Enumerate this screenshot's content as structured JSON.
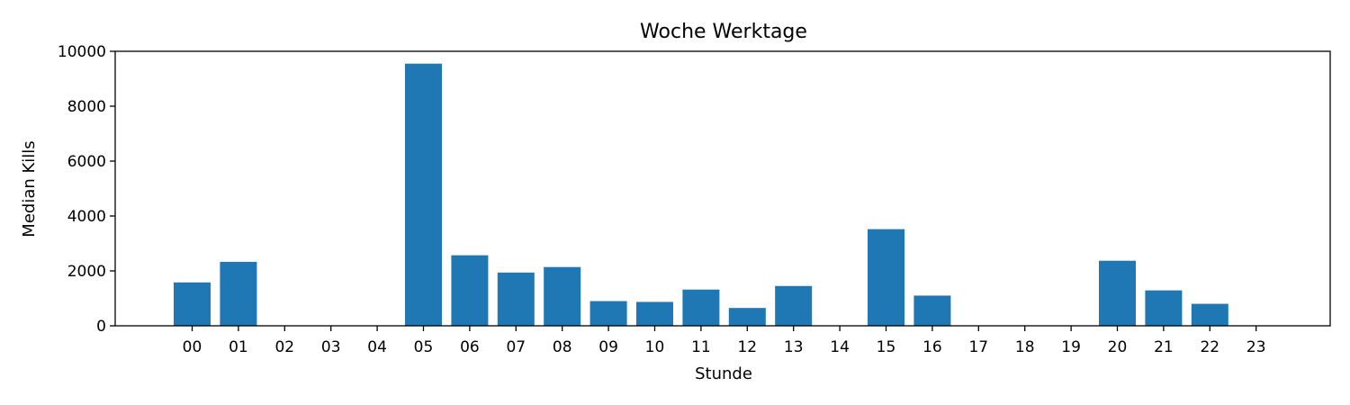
{
  "chart_data": {
    "type": "bar",
    "title": "Woche Werktage",
    "xlabel": "Stunde",
    "ylabel": "Median Kills",
    "categories": [
      "00",
      "01",
      "02",
      "03",
      "04",
      "05",
      "06",
      "07",
      "08",
      "09",
      "10",
      "11",
      "12",
      "13",
      "14",
      "15",
      "16",
      "17",
      "18",
      "19",
      "20",
      "21",
      "22",
      "23"
    ],
    "values": [
      1580,
      2330,
      0,
      0,
      0,
      9550,
      2570,
      1940,
      2140,
      900,
      870,
      1320,
      650,
      1450,
      0,
      3520,
      1100,
      0,
      0,
      0,
      2370,
      1290,
      800,
      0
    ],
    "ylim": [
      0,
      10000
    ],
    "yticks": [
      0,
      2000,
      4000,
      6000,
      8000,
      10000
    ],
    "bar_color": "#1f77b4",
    "grid": false,
    "legend": "none"
  }
}
